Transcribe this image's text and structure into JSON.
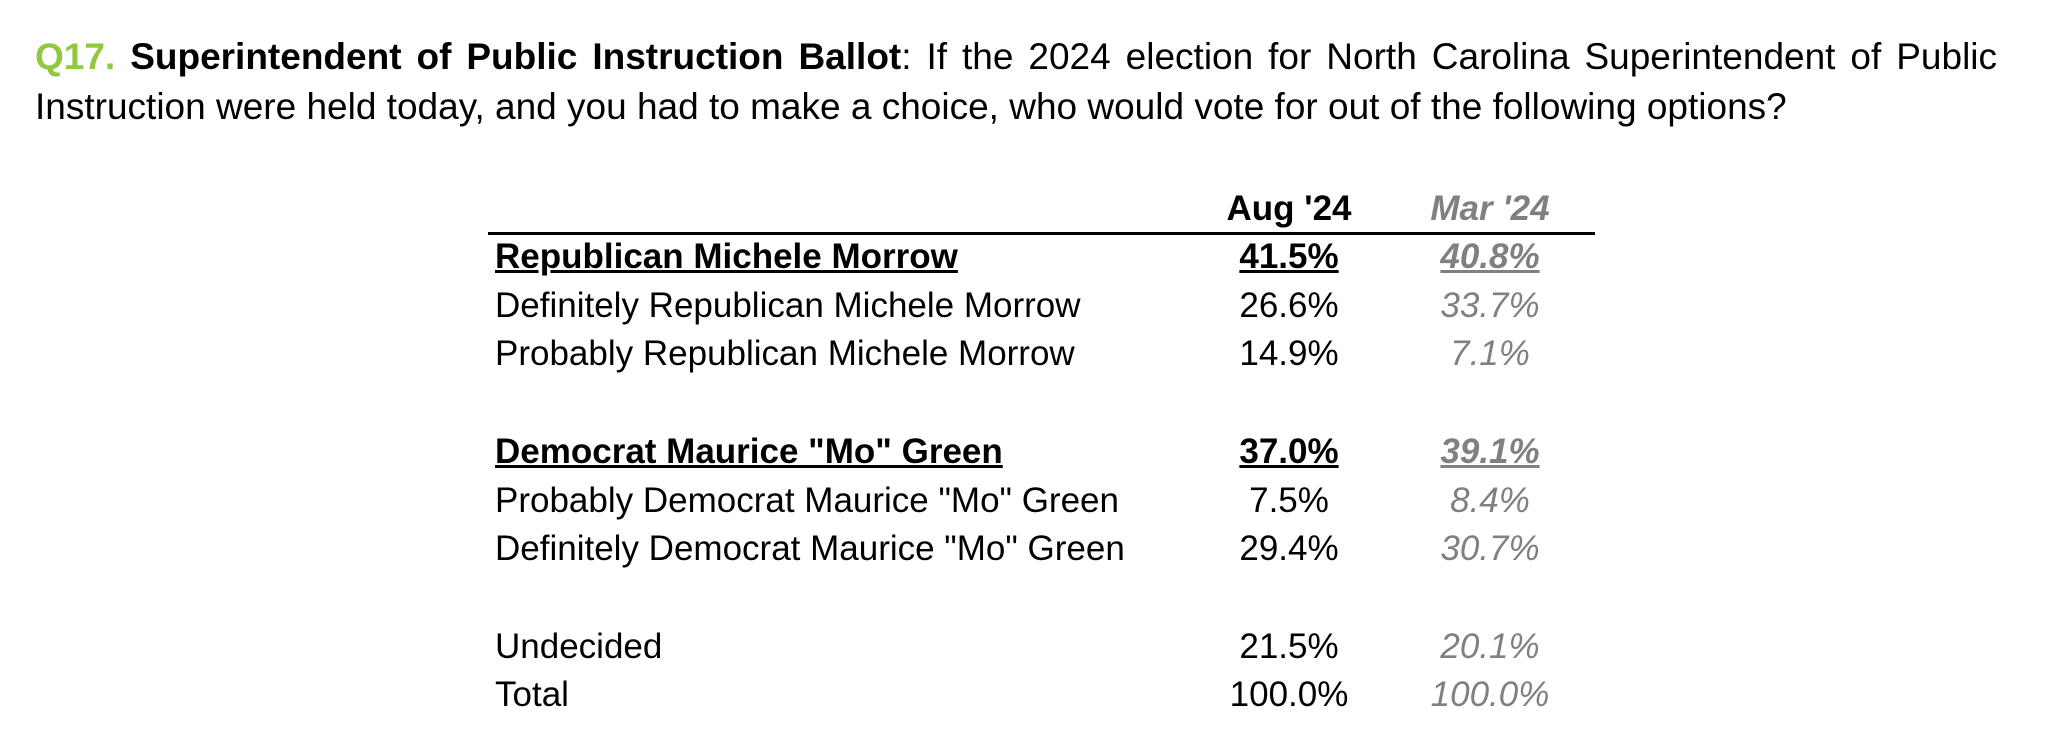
{
  "question": {
    "number": "Q17.",
    "title": "Superintendent of Public Instruction Ballot",
    "text": ": If the 2024 election for North Carolina Superintendent of Public Instruction were held today, and you had to make a choice, who would vote for out of the following options?"
  },
  "table": {
    "headers": [
      "Aug '24",
      "Mar '24"
    ],
    "groups": [
      {
        "heading": [
          "Republican Michele Morrow",
          "41.5%",
          "40.8%"
        ],
        "rows": [
          [
            "Definitely Republican Michele Morrow",
            "26.6%",
            "33.7%"
          ],
          [
            "Probably Republican Michele Morrow",
            "14.9%",
            "7.1%"
          ]
        ]
      },
      {
        "heading": [
          "Democrat Maurice \"Mo\" Green",
          "37.0%",
          "39.1%"
        ],
        "rows": [
          [
            "Probably Democrat Maurice \"Mo\" Green",
            "7.5%",
            "8.4%"
          ],
          [
            "Definitely Democrat Maurice \"Mo\" Green",
            "29.4%",
            "30.7%"
          ]
        ]
      },
      {
        "rows": [
          [
            "Undecided",
            "21.5%",
            "20.1%"
          ],
          [
            "Total",
            "100.0%",
            "100.0%"
          ]
        ]
      }
    ]
  }
}
